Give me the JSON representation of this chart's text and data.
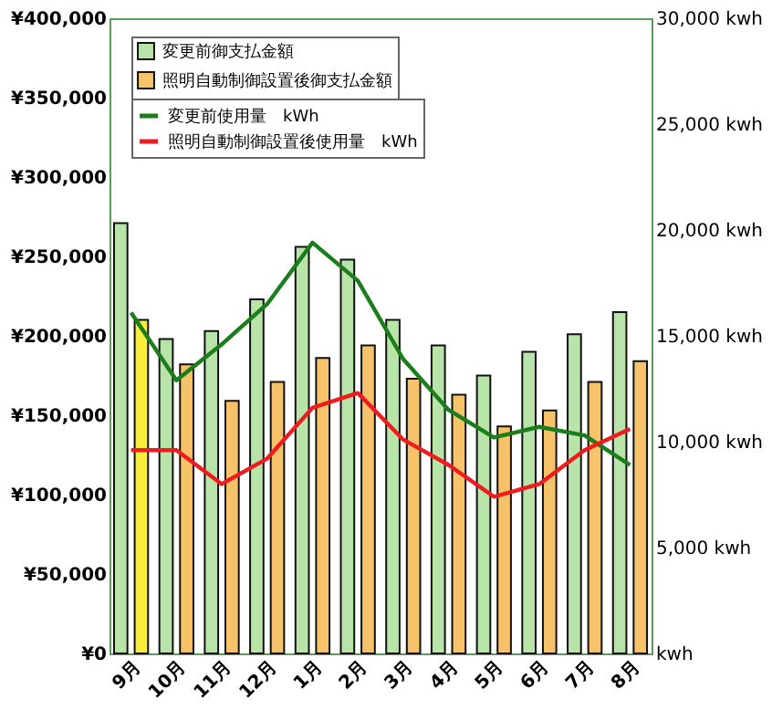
{
  "chart_data": {
    "type": "bar",
    "categories": [
      "9月",
      "10月",
      "11月",
      "12月",
      "1月",
      "2月",
      "3月",
      "4月",
      "5月",
      "6月",
      "7月",
      "8月"
    ],
    "series": [
      {
        "name": "変更前御支払金額",
        "color": "#b8e4aa",
        "values": [
          271000,
          198000,
          203000,
          223000,
          256000,
          248000,
          210000,
          194000,
          175000,
          190000,
          201000,
          215000
        ]
      },
      {
        "name": "照明自動制御設置後御支払金額",
        "color": "#f6c26a",
        "colors": [
          "#f8ee3a",
          "#f6c26a",
          "#f6c26a",
          "#f6c26a",
          "#f6c26a",
          "#f6c26a",
          "#f6c26a",
          "#f6c26a",
          "#f6c26a",
          "#f6c26a",
          "#f6c26a",
          "#f6c26a"
        ],
        "values": [
          210000,
          182000,
          159000,
          171000,
          186000,
          194000,
          173000,
          163000,
          143000,
          153000,
          171000,
          184000
        ]
      },
      {
        "name": "変更前使用量　kWh",
        "type": "line",
        "axis": "y2",
        "color": "#1b7d1b",
        "values": [
          16100,
          12900,
          14600,
          16500,
          19400,
          17600,
          13900,
          11500,
          10200,
          10700,
          10300,
          8900
        ]
      },
      {
        "name": "照明自動制御設置後使用量　kWh",
        "type": "line",
        "axis": "y2",
        "color": "#ee1c1c",
        "values": [
          9600,
          9600,
          8000,
          9200,
          11600,
          12300,
          10100,
          8900,
          7400,
          8000,
          9600,
          10600
        ]
      }
    ],
    "ylim": [
      0,
      400000
    ],
    "yticks": [
      {
        "value": 0,
        "label": "¥0"
      },
      {
        "value": 50000,
        "label": "¥50,000"
      },
      {
        "value": 100000,
        "label": "¥100,000"
      },
      {
        "value": 150000,
        "label": "¥150,000"
      },
      {
        "value": 200000,
        "label": "¥200,000"
      },
      {
        "value": 250000,
        "label": "¥250,000"
      },
      {
        "value": 300000,
        "label": "¥300,000"
      },
      {
        "value": 350000,
        "label": "¥350,000"
      },
      {
        "value": 400000,
        "label": "¥400,000"
      }
    ],
    "y2lim": [
      0,
      30000
    ],
    "y2ticks": [
      {
        "value": 0,
        "label": "kwh"
      },
      {
        "value": 5000,
        "label": "5,000 kwh"
      },
      {
        "value": 10000,
        "label": "10,000 kwh"
      },
      {
        "value": 15000,
        "label": "15,000 kwh"
      },
      {
        "value": 20000,
        "label": "20,000 kwh"
      },
      {
        "value": 25000,
        "label": "25,000 kwh"
      },
      {
        "value": 30000,
        "label": "30,000 kwh"
      }
    ],
    "legend": "top left",
    "grid": false
  }
}
